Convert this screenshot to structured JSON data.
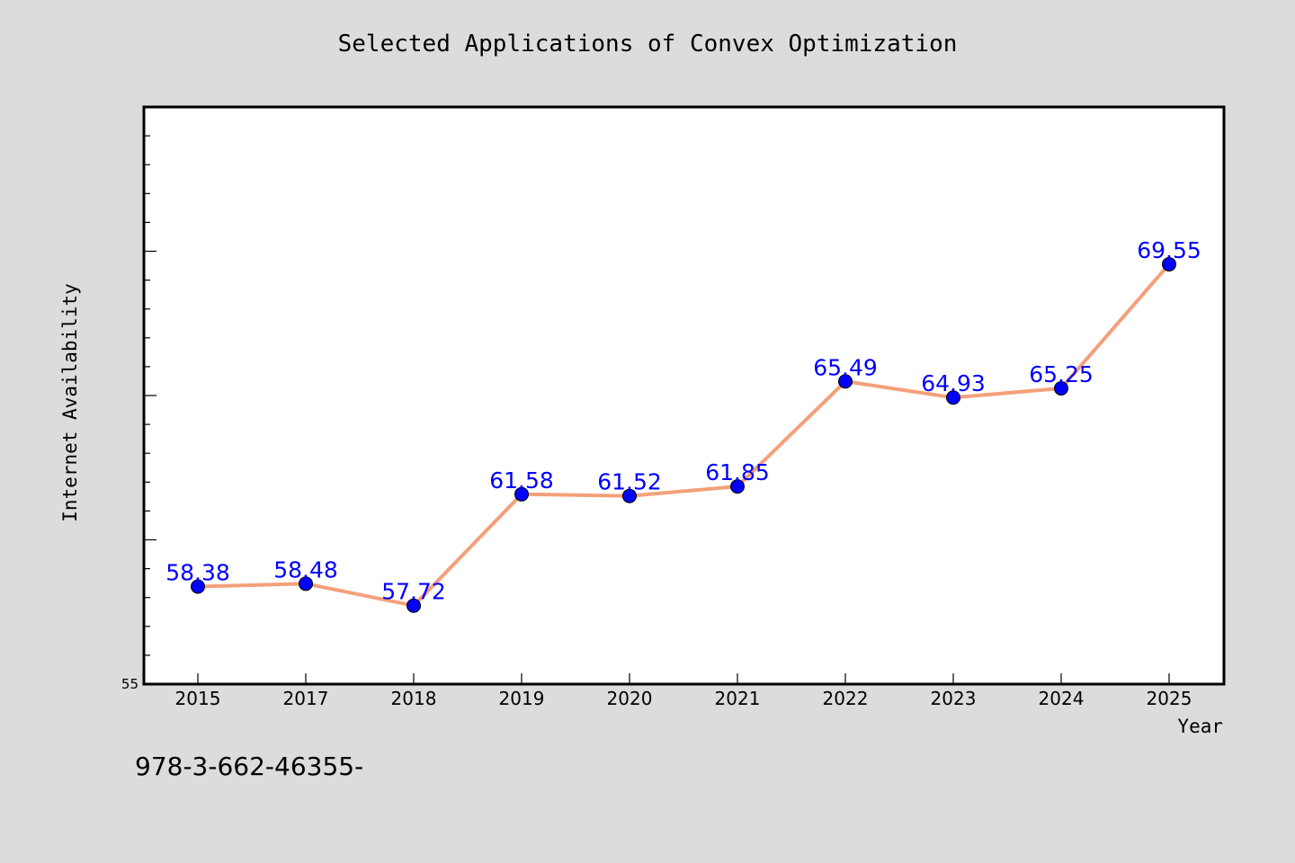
{
  "chart_data": {
    "type": "line",
    "title": "Selected Applications of Convex Optimization",
    "xlabel": "Year",
    "ylabel": "Internet Availability",
    "categories": [
      "2015",
      "2017",
      "2018",
      "2019",
      "2020",
      "2021",
      "2022",
      "2023",
      "2024",
      "2025"
    ],
    "series": [
      {
        "values": [
          58.38,
          58.48,
          57.72,
          61.58,
          61.52,
          61.85,
          65.49,
          64.93,
          65.25,
          69.55
        ],
        "value_labels": [
          "58.38",
          "58.48",
          "57.72",
          "61.58",
          "61.52",
          "61.85",
          "65.49",
          "64.93",
          "65.25",
          "69.55"
        ],
        "line_color": "#f4a07a",
        "marker_color": "#0000ff",
        "label_color": "#0000ff"
      }
    ],
    "ylim": [
      55,
      75
    ],
    "y_tick_labels": [
      "55"
    ],
    "y_minor_tick_step": 1,
    "y_major_tick_step": 5,
    "grid": false,
    "legend": "none"
  },
  "footer": {
    "text": "978-3-662-46355-"
  },
  "colors": {
    "background": "#dcdcdc",
    "plot_background": "#ffffff",
    "axis": "#000000"
  }
}
